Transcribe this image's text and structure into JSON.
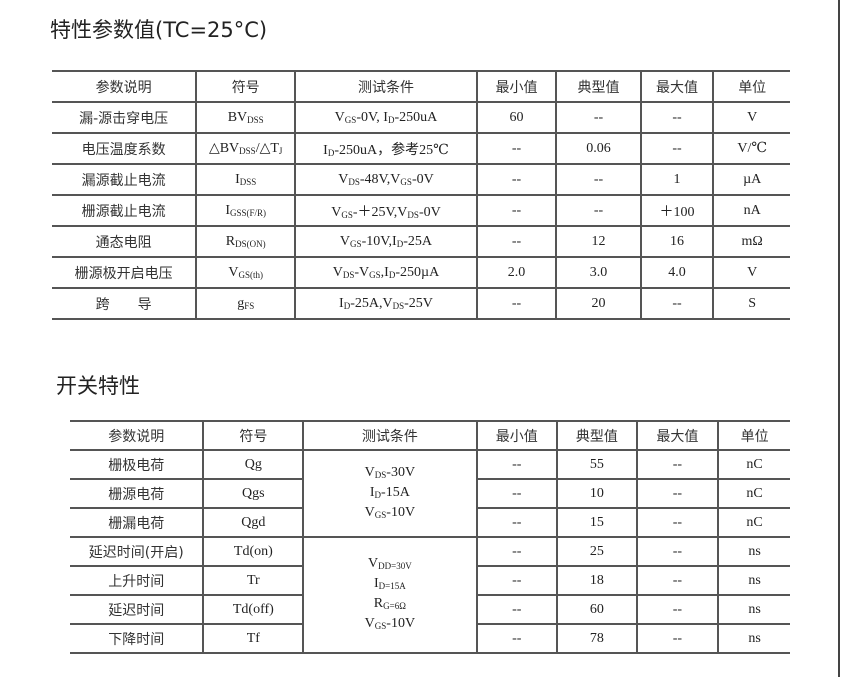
{
  "section1": {
    "title": "特性参数值(TC=25°C)",
    "headers": [
      "参数说明",
      "符号",
      "测试条件",
      "最小值",
      "典型值",
      "最大值",
      "单位"
    ],
    "rows": [
      {
        "param": "漏-源击穿电压",
        "symbol": [
          [
            "BV",
            ""
          ],
          [
            "DSS",
            "s"
          ]
        ],
        "cond": [
          [
            "V",
            ""
          ],
          [
            "GS",
            "s"
          ],
          [
            "-0V, I",
            ""
          ],
          [
            "D",
            "s"
          ],
          [
            "-250uA",
            ""
          ]
        ],
        "min": "60",
        "typ": "--",
        "max": "--",
        "unit": "V"
      },
      {
        "param": "电压温度系数",
        "symbol": [
          [
            "△BV",
            ""
          ],
          [
            "DSS",
            "s"
          ],
          [
            "/△T",
            ""
          ],
          [
            "J",
            "s"
          ]
        ],
        "cond": [
          [
            "I",
            ""
          ],
          [
            "D",
            "s"
          ],
          [
            "-250uA，参考25℃",
            ""
          ]
        ],
        "min": "--",
        "typ": "0.06",
        "max": "--",
        "unit": "V/℃"
      },
      {
        "param": "漏源截止电流",
        "symbol": [
          [
            "I",
            ""
          ],
          [
            "DSS",
            "s"
          ]
        ],
        "cond": [
          [
            "V",
            ""
          ],
          [
            "DS",
            "s"
          ],
          [
            "-48V,V",
            ""
          ],
          [
            "GS",
            "s"
          ],
          [
            "-0V",
            ""
          ]
        ],
        "min": "--",
        "typ": "--",
        "max": "1",
        "unit": "µA"
      },
      {
        "param": "栅源截止电流",
        "symbol": [
          [
            "I",
            ""
          ],
          [
            "GSS(F/R)",
            "s"
          ]
        ],
        "cond": [
          [
            "V",
            ""
          ],
          [
            "GS",
            "s"
          ],
          [
            "-＋25V,V",
            ""
          ],
          [
            "DS",
            "s"
          ],
          [
            "-0V",
            ""
          ]
        ],
        "min": "--",
        "typ": "--",
        "max": "＋100",
        "unit": "nA"
      },
      {
        "param": "通态电阻",
        "symbol": [
          [
            "R",
            ""
          ],
          [
            "DS(ON)",
            "s"
          ]
        ],
        "cond": [
          [
            "V",
            ""
          ],
          [
            "GS",
            "s"
          ],
          [
            "-10V,I",
            ""
          ],
          [
            "D",
            "s"
          ],
          [
            "-25A",
            ""
          ]
        ],
        "min": "--",
        "typ": "12",
        "max": "16",
        "unit": "mΩ"
      },
      {
        "param": "栅源极开启电压",
        "symbol": [
          [
            "V",
            ""
          ],
          [
            "GS(th)",
            "s"
          ]
        ],
        "cond": [
          [
            "V",
            ""
          ],
          [
            "DS",
            "s"
          ],
          [
            "-V",
            ""
          ],
          [
            "GS",
            "s"
          ],
          [
            ",I",
            ""
          ],
          [
            "D",
            "s"
          ],
          [
            "-250µA",
            ""
          ]
        ],
        "min": "2.0",
        "typ": "3.0",
        "max": "4.0",
        "unit": "V"
      },
      {
        "param": "跨　　导",
        "symbol": [
          [
            "g",
            ""
          ],
          [
            "FS",
            "s"
          ]
        ],
        "cond": [
          [
            "I",
            ""
          ],
          [
            "D",
            "s"
          ],
          [
            "-25A,V",
            ""
          ],
          [
            "DS",
            "s"
          ],
          [
            "-25V",
            ""
          ]
        ],
        "min": "--",
        "typ": "20",
        "max": "--",
        "unit": "S"
      }
    ]
  },
  "section2": {
    "title": "开关特性",
    "headers": [
      "参数说明",
      "符号",
      "测试条件",
      "最小值",
      "典型值",
      "最大值",
      "单位"
    ],
    "groups": [
      {
        "cond": [
          [
            [
              "V",
              ""
            ],
            [
              "DS",
              "s"
            ],
            [
              "-30V",
              ""
            ]
          ],
          [
            [
              "I",
              ""
            ],
            [
              "D",
              "s"
            ],
            [
              "-15A",
              ""
            ]
          ],
          [
            [
              "V",
              ""
            ],
            [
              "GS",
              "s"
            ],
            [
              "-10V",
              ""
            ]
          ]
        ],
        "rows": [
          {
            "param": "栅极电荷",
            "symbol": "Qg",
            "min": "--",
            "typ": "55",
            "max": "--",
            "unit": "nC"
          },
          {
            "param": "栅源电荷",
            "symbol": "Qgs",
            "min": "--",
            "typ": "10",
            "max": "--",
            "unit": "nC"
          },
          {
            "param": "栅漏电荷",
            "symbol": "Qgd",
            "min": "--",
            "typ": "15",
            "max": "--",
            "unit": "nC"
          }
        ]
      },
      {
        "cond": [
          [
            [
              "V",
              ""
            ],
            [
              "DD=30V",
              "s"
            ]
          ],
          [
            [
              "I",
              ""
            ],
            [
              "D=15A",
              "s"
            ]
          ],
          [
            [
              "R",
              ""
            ],
            [
              "G=6Ω",
              "s"
            ]
          ],
          [
            [
              "V",
              ""
            ],
            [
              "GS",
              "s"
            ],
            [
              "-10V",
              ""
            ]
          ]
        ],
        "rows": [
          {
            "param": "延迟时间(开启)",
            "symbol": "Td(on)",
            "min": "--",
            "typ": "25",
            "max": "--",
            "unit": "ns"
          },
          {
            "param": "上升时间",
            "symbol": "Tr",
            "min": "--",
            "typ": "18",
            "max": "--",
            "unit": "ns"
          },
          {
            "param": "延迟时间",
            "symbol": "Td(off)",
            "min": "--",
            "typ": "60",
            "max": "--",
            "unit": "ns"
          },
          {
            "param": "下降时间",
            "symbol": "Tf",
            "min": "--",
            "typ": "78",
            "max": "--",
            "unit": "ns"
          }
        ]
      }
    ]
  }
}
